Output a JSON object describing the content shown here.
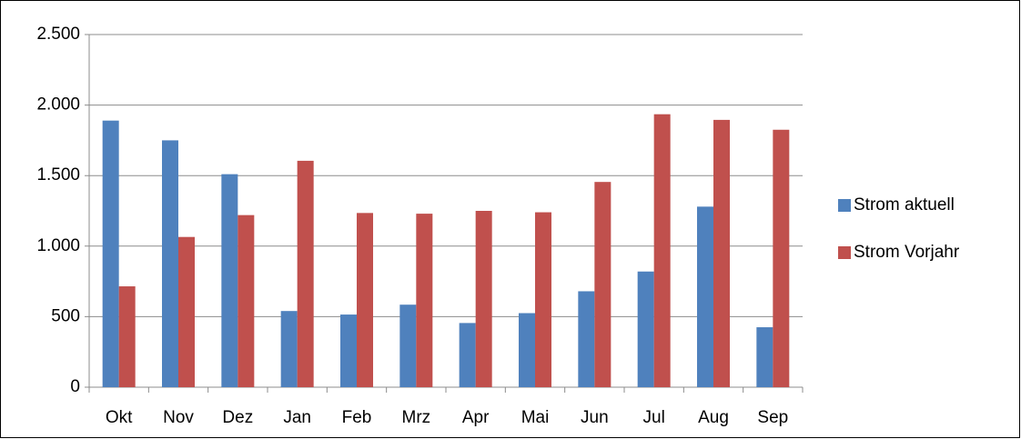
{
  "chart_data": {
    "type": "bar",
    "categories": [
      "Okt",
      "Nov",
      "Dez",
      "Jan",
      "Feb",
      "Mrz",
      "Apr",
      "Mai",
      "Jun",
      "Jul",
      "Aug",
      "Sep"
    ],
    "series": [
      {
        "name": "Strom aktuell",
        "color": "#4f81bd",
        "values": [
          1890,
          1750,
          1510,
          540,
          515,
          585,
          455,
          525,
          680,
          820,
          1280,
          425
        ]
      },
      {
        "name": "Strom Vorjahr",
        "color": "#c0504d",
        "values": [
          715,
          1065,
          1220,
          1605,
          1235,
          1230,
          1250,
          1240,
          1455,
          1935,
          1895,
          1825
        ]
      }
    ],
    "ylim": [
      0,
      2500
    ],
    "yticks": [
      0,
      500,
      {
        "value": 1000,
        "label": "1.000"
      },
      {
        "value": 1500,
        "label": "1.500"
      },
      {
        "value": 2000,
        "label": "2.000"
      },
      {
        "value": 2500,
        "label": "2.500"
      }
    ],
    "grid": true,
    "legend": "right"
  }
}
